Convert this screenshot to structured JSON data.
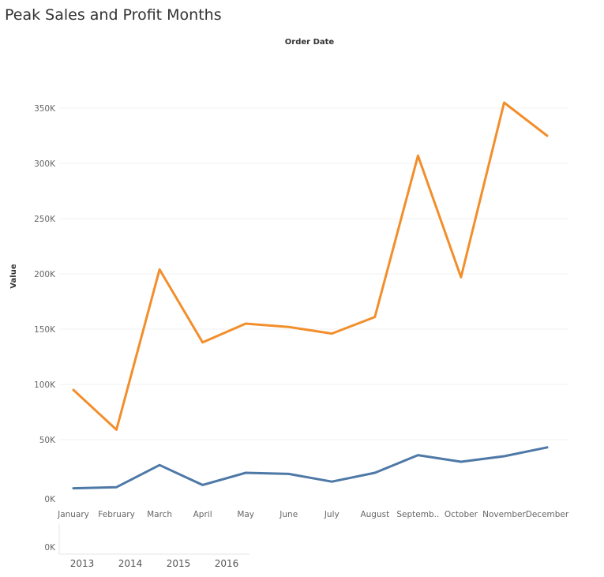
{
  "chart_data": [
    {
      "type": "line",
      "title": "Peak Sales and Profit Months",
      "top_axis_title": "Order Date",
      "ylabel": "Value",
      "ylim": [
        0,
        375000
      ],
      "y_ticks": [
        {
          "value": 0,
          "label": "0K"
        },
        {
          "value": 50000,
          "label": "50K"
        },
        {
          "value": 100000,
          "label": "100K"
        },
        {
          "value": 150000,
          "label": "150K"
        },
        {
          "value": 200000,
          "label": "200K"
        },
        {
          "value": 250000,
          "label": "250K"
        },
        {
          "value": 300000,
          "label": "300K"
        },
        {
          "value": 350000,
          "label": "350K"
        }
      ],
      "categories": [
        "January",
        "February",
        "March",
        "April",
        "May",
        "June",
        "July",
        "August",
        "Septemb..",
        "October",
        "November",
        "December"
      ],
      "grid": true,
      "series": [
        {
          "color": "#f28e2b",
          "values": [
            95000,
            59000,
            204000,
            138000,
            155000,
            152000,
            146000,
            161000,
            307000,
            197000,
            355000,
            325000
          ]
        },
        {
          "color": "#4e79a7",
          "values": [
            6000,
            7000,
            27000,
            9000,
            20000,
            19000,
            12000,
            20000,
            36000,
            30000,
            35000,
            43000
          ]
        }
      ]
    },
    {
      "type": "line",
      "y_ticks": [
        {
          "value": 0,
          "label": "0K"
        }
      ],
      "categories": [
        "2013",
        "2014",
        "2015",
        "2016"
      ],
      "series": []
    }
  ]
}
